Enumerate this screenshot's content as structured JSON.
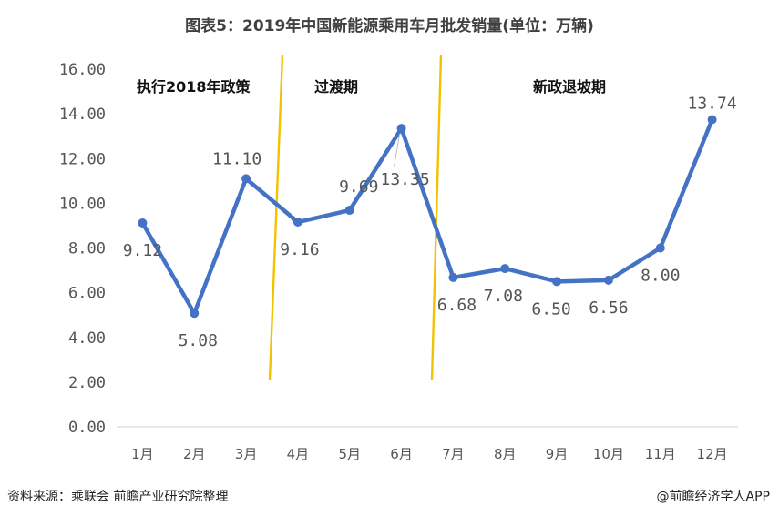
{
  "title": "图表5：2019年中国新能源乘用车月批发销量(单位：万辆)",
  "source": "资料来源：乘联会 前瞻产业研究院整理",
  "credit": "@前瞻经济学人APP",
  "colors": {
    "line": "#4472C4",
    "divider": "#F2C200",
    "grid": "#D9D9D9"
  },
  "chart_data": {
    "type": "line",
    "categories": [
      "1月",
      "2月",
      "3月",
      "4月",
      "5月",
      "6月",
      "7月",
      "8月",
      "9月",
      "10月",
      "11月",
      "12月"
    ],
    "values": [
      9.12,
      5.08,
      11.1,
      9.16,
      9.69,
      13.35,
      6.68,
      7.08,
      6.5,
      6.56,
      8.0,
      13.74
    ],
    "data_labels": [
      "9.12",
      "5.08",
      "11.10",
      "9.16",
      "9.69",
      "13.35",
      "6.68",
      "7.08",
      "6.50",
      "6.56",
      "8.00",
      "13.74"
    ],
    "y_ticks": [
      "0.00",
      "2.00",
      "4.00",
      "6.00",
      "8.00",
      "10.00",
      "12.00",
      "14.00",
      "16.00"
    ],
    "ylim": [
      0,
      16
    ],
    "grid": false,
    "phases": [
      "执行2018年政策",
      "过渡期",
      "新政退坡期"
    ]
  }
}
